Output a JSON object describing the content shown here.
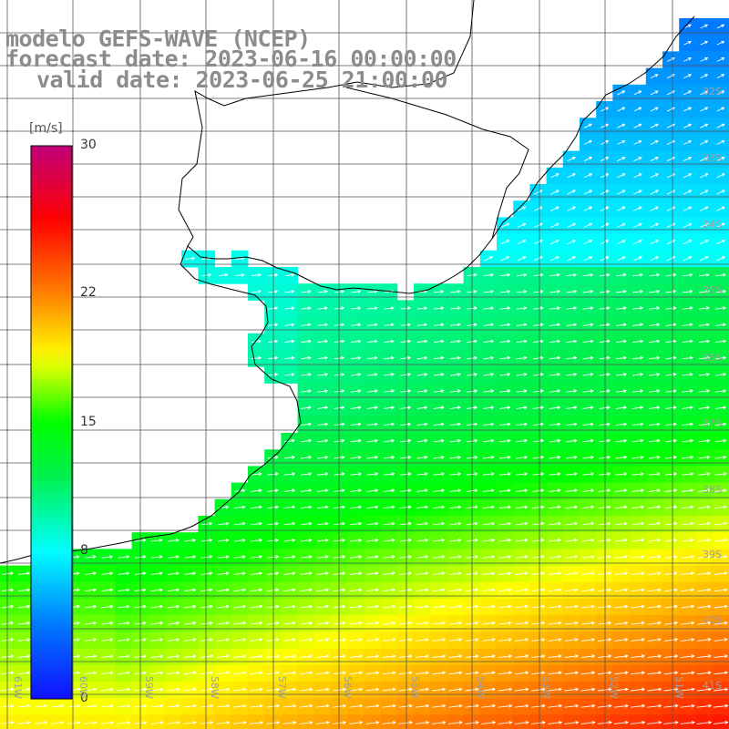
{
  "title": {
    "line1": "modelo GEFS-WAVE (NCEP)",
    "line2": "forecast date: 2023-06-16 00:00:00",
    "line3": "valid date: 2023-06-25 21:00:00"
  },
  "colorbar": {
    "units": "[m/s]",
    "ticks": [
      "30",
      "22",
      "15",
      "8",
      "0"
    ],
    "tick_values": [
      30,
      22,
      15,
      8,
      0
    ],
    "range": [
      0,
      30
    ],
    "colors": [
      "#1010ff",
      "#00ffff",
      "#00ff00",
      "#ffff00",
      "#ff8000",
      "#ff0000",
      "#c0007a"
    ]
  },
  "map": {
    "latitudes": [
      "32S",
      "33S",
      "34S",
      "35S",
      "36S",
      "37S",
      "38S",
      "39S",
      "40S",
      "41S"
    ],
    "longitudes": [
      "61W",
      "60W",
      "59W",
      "58W",
      "57W",
      "56W",
      "55W",
      "54W",
      "53W",
      "52W",
      "51W"
    ],
    "region": "Rio de la Plata / Uruguay coast",
    "arrow_color": "#ffffff",
    "coastline_color": "#000000",
    "grid_color": "#555555",
    "icons": [
      "wind-arrow-icon"
    ]
  }
}
